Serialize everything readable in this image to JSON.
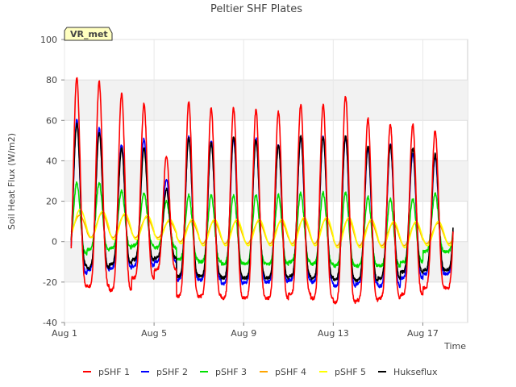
{
  "chart_data": {
    "type": "line",
    "title": "Peltier SHF Plates",
    "xlabel": "Time",
    "ylabel": "Soil Heat Flux (W/m2)",
    "badge": "VR_met",
    "xlim": [
      0.0,
      18.0
    ],
    "ylim": [
      -40,
      100
    ],
    "yticks": [
      -40,
      -20,
      0,
      20,
      40,
      60,
      80,
      100
    ],
    "xticks": [
      {
        "x": 0,
        "label": "Aug 1"
      },
      {
        "x": 4,
        "label": "Aug 5"
      },
      {
        "x": 8,
        "label": "Aug 9"
      },
      {
        "x": 12,
        "label": "Aug 13"
      },
      {
        "x": 16,
        "label": "Aug 17"
      }
    ],
    "legend_position": "bottom",
    "grid": true,
    "daily_extremes": {
      "days": [
        "Aug 1",
        "Aug 2",
        "Aug 3",
        "Aug 4",
        "Aug 5",
        "Aug 6",
        "Aug 7",
        "Aug 8",
        "Aug 9",
        "Aug 10",
        "Aug 11",
        "Aug 12",
        "Aug 13",
        "Aug 14",
        "Aug 15",
        "Aug 16",
        "Aug 17"
      ],
      "series": [
        {
          "name": "pSHF 1",
          "color": "#ff0000",
          "max": [
            81,
            79,
            73,
            68,
            42,
            69,
            66,
            66,
            65,
            64,
            68,
            68,
            72,
            61,
            58,
            58,
            55
          ],
          "min": [
            -22,
            -22,
            -24,
            -18,
            -14,
            -27,
            -27,
            -28,
            -28,
            -28,
            -26,
            -28,
            -30,
            -29,
            -28,
            -26,
            -23
          ]
        },
        {
          "name": "pSHF 2",
          "color": "#0000ff",
          "max": [
            60,
            56,
            48,
            51,
            31,
            52,
            50,
            51,
            51,
            48,
            52,
            52,
            52,
            46,
            48,
            44,
            42
          ],
          "min": [
            -16,
            -14,
            -13,
            -12,
            -10,
            -19,
            -19,
            -21,
            -20,
            -20,
            -19,
            -20,
            -22,
            -21,
            -22,
            -18,
            -16
          ]
        },
        {
          "name": "pSHF 3",
          "color": "#00e000",
          "max": [
            29,
            29,
            25,
            24,
            20,
            23,
            23,
            23,
            23,
            23,
            24,
            24,
            24,
            22,
            21,
            21,
            24
          ],
          "min": [
            -6,
            -4,
            -3,
            -2,
            -3,
            -9,
            -10,
            -11,
            -11,
            -11,
            -10,
            -11,
            -12,
            -12,
            -12,
            -10,
            -5
          ]
        },
        {
          "name": "pSHF 4",
          "color": "#ffa500",
          "max": [
            13,
            14,
            13,
            12,
            10,
            10,
            10,
            10,
            10,
            10,
            11,
            11,
            11,
            10,
            9,
            9,
            9
          ],
          "min": [
            3,
            2,
            2,
            2,
            2,
            0,
            -1,
            -1,
            -1,
            -1,
            -1,
            -1,
            -2,
            -2,
            -2,
            -2,
            -1
          ]
        },
        {
          "name": "pSHF 5",
          "color": "#ffff00",
          "max": [
            16,
            15,
            14,
            13,
            11,
            11,
            11,
            11,
            11,
            11,
            12,
            12,
            12,
            11,
            10,
            10,
            10
          ],
          "min": [
            2,
            2,
            1,
            1,
            1,
            -1,
            -2,
            -2,
            -2,
            -2,
            -2,
            -2,
            -3,
            -3,
            -3,
            -3,
            -2
          ]
        },
        {
          "name": "Hukseflux",
          "color": "#000000",
          "max": [
            58,
            54,
            46,
            46,
            26,
            51,
            49,
            52,
            50,
            47,
            52,
            52,
            52,
            47,
            48,
            46,
            43
          ],
          "min": [
            -12,
            -13,
            -11,
            -9,
            -8,
            -17,
            -17,
            -18,
            -18,
            -18,
            -17,
            -18,
            -19,
            -19,
            -18,
            -15,
            -14
          ]
        }
      ]
    }
  }
}
